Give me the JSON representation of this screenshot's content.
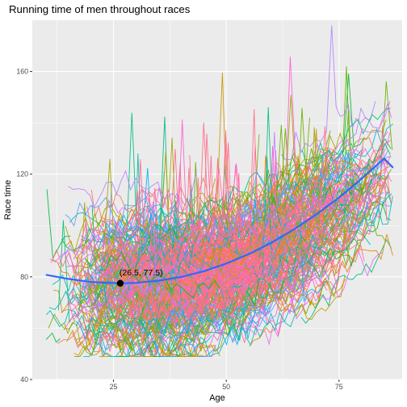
{
  "chart_data": {
    "type": "line",
    "title": "Running time of men throughout races",
    "xlabel": "Age",
    "ylabel": "Race time",
    "xlim": [
      7,
      89
    ],
    "ylim": [
      40,
      180
    ],
    "x_ticks": [
      25,
      50,
      75
    ],
    "y_ticks": [
      40,
      80,
      120,
      160
    ],
    "grid": true,
    "legend": "none",
    "background": "#ebebeb",
    "runner_palette": [
      "#f8766d",
      "#e58700",
      "#c99800",
      "#a3a500",
      "#6bb100",
      "#00ba38",
      "#00bf7d",
      "#00c0af",
      "#00bcd8",
      "#00b0f6",
      "#619cff",
      "#b983ff",
      "#e76bf3",
      "#fd61d1",
      "#ff67a4"
    ],
    "dense_fill_color": "#ff6f8c",
    "trend": {
      "color": "#3366ff",
      "x": [
        10,
        15,
        20,
        25,
        26.5,
        30,
        35,
        40,
        45,
        50,
        55,
        60,
        65,
        70,
        75,
        80,
        85,
        87
      ],
      "y": [
        80.8,
        79.2,
        78.0,
        77.6,
        77.5,
        77.7,
        78.5,
        80.0,
        82.2,
        85.2,
        88.9,
        93.3,
        98.5,
        104.4,
        110.9,
        118.2,
        126.1,
        122.5
      ]
    },
    "annotation": {
      "x": 26.5,
      "y": 77.5,
      "label": "(26.5, 77.5)"
    }
  }
}
